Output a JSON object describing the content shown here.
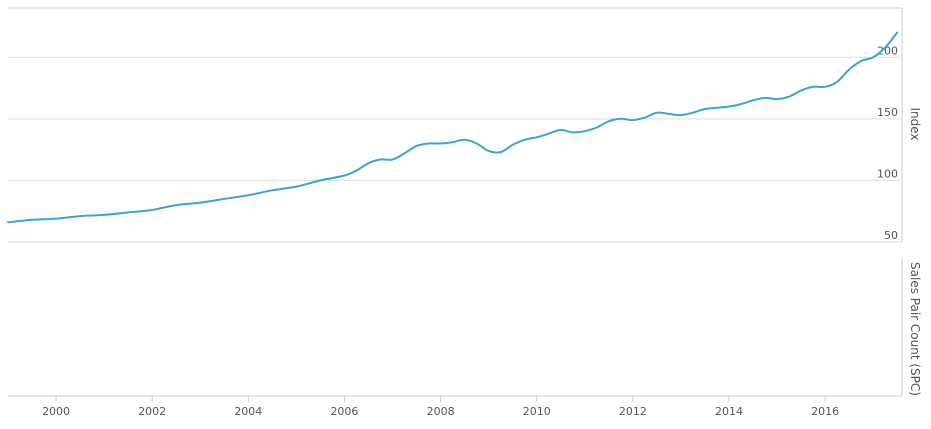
{
  "chart_data": [
    {
      "type": "line",
      "panel": "top",
      "ylabel": "Index",
      "ylim": [
        50,
        240
      ],
      "yticks": [
        50,
        100,
        150,
        200
      ],
      "xlim": [
        1999.0,
        2017.6
      ],
      "grid": "horizontal",
      "series": [
        {
          "color": "#3aa3d8",
          "x": [
            1999.0,
            1999.5,
            2000.0,
            2000.5,
            2001.0,
            2001.5,
            2002.0,
            2002.5,
            2003.0,
            2003.5,
            2004.0,
            2004.5,
            2005.0,
            2005.5,
            2006.0,
            2006.25,
            2006.5,
            2006.75,
            2007.0,
            2007.25,
            2007.5,
            2007.75,
            2008.0,
            2008.25,
            2008.5,
            2008.75,
            2009.0,
            2009.25,
            2009.5,
            2009.75,
            2010.0,
            2010.25,
            2010.5,
            2010.75,
            2011.0,
            2011.25,
            2011.5,
            2011.75,
            2012.0,
            2012.25,
            2012.5,
            2012.75,
            2013.0,
            2013.25,
            2013.5,
            2013.75,
            2014.0,
            2014.25,
            2014.5,
            2014.75,
            2015.0,
            2015.25,
            2015.5,
            2015.75,
            2016.0,
            2016.25,
            2016.5,
            2016.75,
            2017.0,
            2017.25,
            2017.5
          ],
          "y": [
            66,
            68,
            69,
            71,
            72,
            74,
            76,
            80,
            82,
            85,
            88,
            92,
            95,
            100,
            104,
            108,
            114,
            117,
            117,
            122,
            128,
            130,
            130,
            131,
            133,
            130,
            124,
            123,
            129,
            133,
            135,
            138,
            141,
            139,
            140,
            143,
            148,
            150,
            149,
            151,
            155,
            154,
            153,
            155,
            158,
            159,
            160,
            162,
            165,
            167,
            166,
            168,
            173,
            176,
            176,
            180,
            190,
            197,
            200,
            208,
            220
          ]
        }
      ]
    },
    {
      "type": "line",
      "panel": "bottom",
      "ylabel": "Sales Pair Count (SPC)",
      "xticks": [
        "2000",
        "2002",
        "2004",
        "2006",
        "2008",
        "2010",
        "2012",
        "2014",
        "2016"
      ],
      "xtick_values": [
        2000,
        2002,
        2004,
        2006,
        2008,
        2010,
        2012,
        2014,
        2016
      ],
      "series": []
    }
  ]
}
